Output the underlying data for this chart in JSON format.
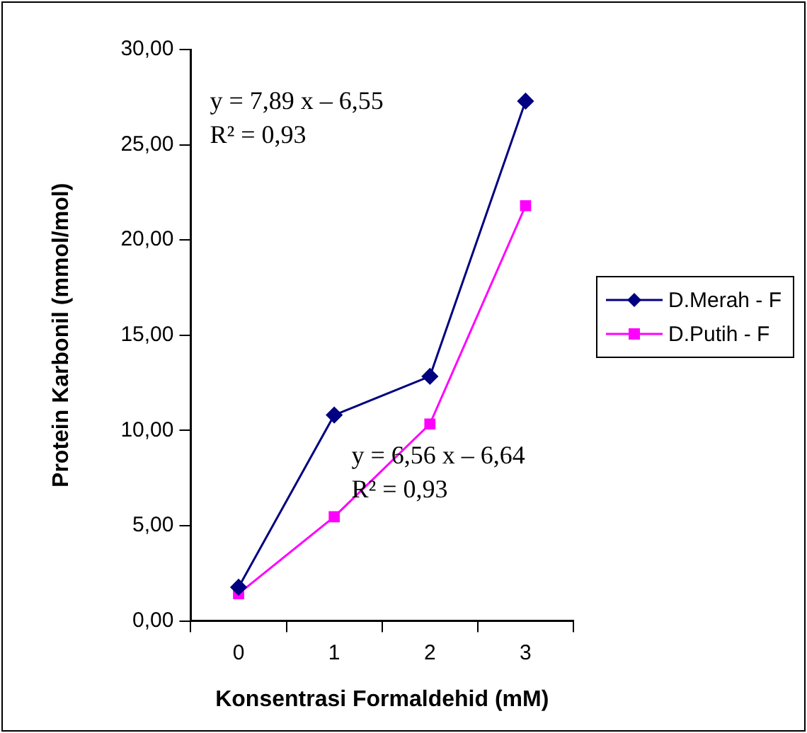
{
  "chart_data": {
    "type": "line",
    "xlabel": "Konsentrasi Formaldehid (mM)",
    "ylabel": "Protein Karbonil (mmol/mol)",
    "categories": [
      "0",
      "1",
      "2",
      "3"
    ],
    "series": [
      {
        "name": "D.Merah - F",
        "color": "#000080",
        "marker": "diamond",
        "values": [
          1.77,
          10.81,
          12.84,
          27.29
        ]
      },
      {
        "name": "D.Putih - F",
        "color": "#ff00ff",
        "marker": "square",
        "values": [
          1.43,
          5.47,
          10.34,
          21.8
        ]
      }
    ],
    "ylim": [
      0,
      30
    ],
    "yticks": [
      {
        "value": 0,
        "label": "0,00"
      },
      {
        "value": 5,
        "label": "5,00"
      },
      {
        "value": 10,
        "label": "10,00"
      },
      {
        "value": 15,
        "label": "15,00"
      },
      {
        "value": 20,
        "label": "20,00"
      },
      {
        "value": 25,
        "label": "25,00"
      },
      {
        "value": 30,
        "label": "30,00"
      }
    ],
    "annotations": [
      "y = 7,89 x – 6,55\nR² = 0,93",
      "y = 6,56 x – 6,64\nR² = 0,93"
    ],
    "grid": false,
    "legend": "right"
  }
}
